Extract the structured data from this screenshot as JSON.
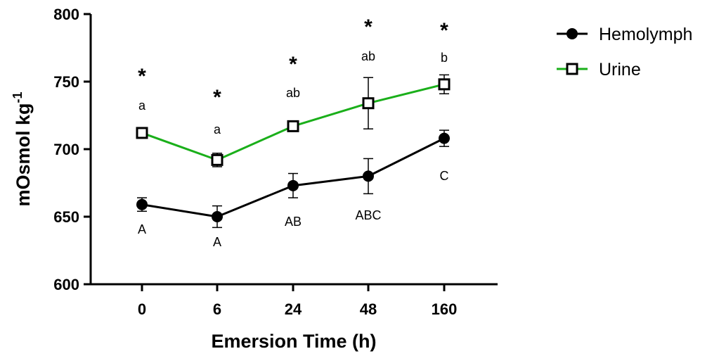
{
  "chart_data": {
    "type": "line",
    "title": "",
    "xlabel": "Emersion Time (h)",
    "ylabel_main": "mOsmol kg",
    "ylabel_sup": "-1",
    "categories": [
      "0",
      "6",
      "24",
      "48",
      "160"
    ],
    "ylim": [
      600,
      800
    ],
    "yticks": [
      600,
      650,
      700,
      750,
      800
    ],
    "grid": false,
    "legend_position": "top-right",
    "series": [
      {
        "name": "Hemolymph",
        "color": "#000000",
        "marker": "filled-circle",
        "values": [
          659,
          650,
          673,
          680,
          708
        ],
        "error": [
          5,
          8,
          9,
          13,
          6
        ],
        "letters": [
          "A",
          "A",
          "AB",
          "ABC",
          "C"
        ]
      },
      {
        "name": "Urine",
        "color": "#1aaf1a",
        "marker": "open-square",
        "values": [
          712,
          692,
          717,
          734,
          748
        ],
        "error": [
          2,
          5,
          2,
          19,
          7
        ],
        "letters": [
          "a",
          "a",
          "ab",
          "ab",
          "b"
        ]
      }
    ],
    "significance_marks": [
      "*",
      "*",
      "*",
      "*",
      "*"
    ]
  }
}
